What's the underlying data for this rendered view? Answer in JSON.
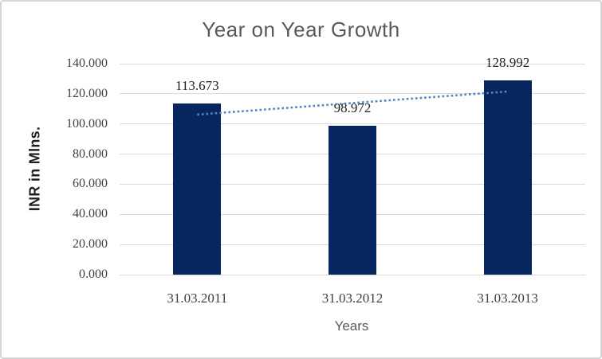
{
  "chart_data": {
    "type": "bar",
    "title": "Year on Year Growth",
    "xlabel": "Years",
    "ylabel": "INR in Mlns.",
    "categories": [
      "31.03.2011",
      "31.03.2012",
      "31.03.2013"
    ],
    "values": [
      113.673,
      98.972,
      128.992
    ],
    "value_labels": [
      "113.673",
      "98.972",
      "128.992"
    ],
    "y_ticks": [
      "0.000",
      "20.000",
      "40.000",
      "60.000",
      "80.000",
      "100.000",
      "120.000",
      "140.000"
    ],
    "y_tick_values": [
      0,
      20,
      40,
      60,
      80,
      100,
      120,
      140
    ],
    "ylim": [
      0,
      140
    ],
    "grid": true,
    "legend": "none",
    "trendline": {
      "style": "dotted",
      "fit_values_at_first_and_last_category": [
        106.22,
        121.54
      ]
    },
    "colors": {
      "bar": "#07265f",
      "trendline": "#4f86c6",
      "gridline": "#d9d9d9",
      "title": "#595959",
      "tick_label": "#3f3f3f",
      "data_label": "#1f1f1f",
      "y_axis_title": "#1f1f1f",
      "x_axis_title": "#595959",
      "frame_border": "#d6d6d6",
      "background": "#ffffff"
    }
  }
}
